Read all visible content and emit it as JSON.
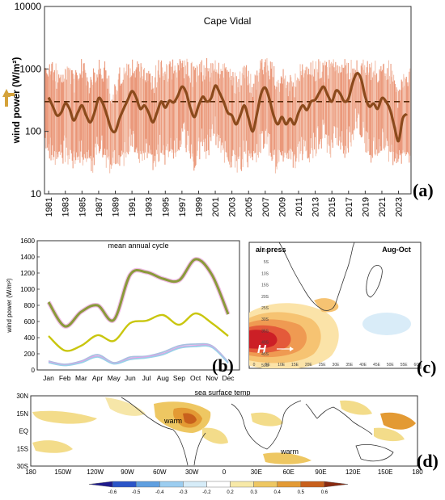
{
  "panel_a": {
    "title": "Cape Vidal",
    "ylabel": "wind power (W/m²)",
    "panel_label": "(a)",
    "chart_data": {
      "type": "line",
      "title": "Cape Vidal",
      "ylabel": "wind power (W/m²)",
      "yscale": "log",
      "ylim": [
        10,
        10000
      ],
      "y_ticks": [
        "10",
        "100",
        "1000",
        "10000"
      ],
      "x_ticks": [
        "1981",
        "1983",
        "1985",
        "1987",
        "1989",
        "1991",
        "1993",
        "1995",
        "1997",
        "1999",
        "2001",
        "2003",
        "2005",
        "2007",
        "2009",
        "2011",
        "2013",
        "2015",
        "2017",
        "2019",
        "2021",
        "2023"
      ],
      "xlim": [
        1980.5,
        2024.5
      ],
      "mean_line": 300,
      "smoothed_series": {
        "x": [
          1981,
          1981.5,
          1982,
          1982.5,
          1983,
          1983.5,
          1984,
          1984.5,
          1985,
          1985.5,
          1986,
          1986.5,
          1987,
          1987.5,
          1988,
          1988.5,
          1989,
          1989.5,
          1990,
          1990.5,
          1991,
          1991.5,
          1992,
          1992.5,
          1993,
          1993.5,
          1994,
          1994.5,
          1995,
          1995.5,
          1996,
          1996.5,
          1997,
          1997.5,
          1998,
          1998.5,
          1999,
          1999.5,
          2000,
          2000.5,
          2001,
          2001.5,
          2002,
          2002.5,
          2003,
          2003.5,
          2004,
          2004.5,
          2005,
          2005.5,
          2006,
          2006.5,
          2007,
          2007.5,
          2008,
          2008.5,
          2009,
          2009.5,
          2010,
          2010.5,
          2011,
          2011.5,
          2012,
          2012.5,
          2013,
          2013.5,
          2014,
          2014.5,
          2015,
          2015.5,
          2016,
          2016.5,
          2017,
          2017.5,
          2018,
          2018.5,
          2019,
          2019.5,
          2020,
          2020.5,
          2021,
          2021.5,
          2022,
          2022.5,
          2023,
          2023.5,
          2024
        ],
        "y": [
          350,
          250,
          180,
          200,
          280,
          230,
          150,
          200,
          260,
          180,
          140,
          200,
          340,
          280,
          180,
          110,
          100,
          160,
          230,
          320,
          440,
          350,
          230,
          260,
          200,
          140,
          200,
          300,
          240,
          310,
          290,
          370,
          520,
          420,
          240,
          170,
          260,
          360,
          300,
          340,
          540,
          420,
          300,
          200,
          180,
          130,
          180,
          260,
          160,
          100,
          190,
          400,
          500,
          330,
          180,
          130,
          170,
          130,
          160,
          130,
          200,
          260,
          220,
          300,
          320,
          420,
          520,
          380,
          300,
          450,
          400,
          300,
          340,
          600,
          850,
          700,
          360,
          250,
          280,
          230,
          340,
          300,
          220,
          120,
          70,
          160,
          190
        ]
      },
      "raw_band": [
        30,
        1000
      ]
    }
  },
  "panel_b": {
    "title": "mean annual cycle",
    "ylabel": "wind power (W/m²)",
    "panel_label": "(b)",
    "chart_data": {
      "type": "line",
      "title": "mean annual cycle",
      "ylabel": "wind power (W/m²)",
      "categories": [
        "Jan",
        "Feb",
        "Mar",
        "Apr",
        "May",
        "Jun",
        "Jul",
        "Aug",
        "Sep",
        "Oct",
        "Nov",
        "Dec"
      ],
      "ylim": [
        0,
        1600
      ],
      "y_ticks": [
        "0",
        "200",
        "400",
        "600",
        "800",
        "1000",
        "1200",
        "1400",
        "1600"
      ],
      "series": [
        {
          "color": "#c9a24a",
          "values": [
            840,
            540,
            720,
            800,
            620,
            1180,
            1210,
            1130,
            1110,
            1370,
            1180,
            690
          ]
        },
        {
          "color": "#c9c60e",
          "values": [
            420,
            240,
            300,
            430,
            360,
            580,
            610,
            680,
            560,
            700,
            580,
            420
          ]
        },
        {
          "color": "#a8c0e0",
          "values": [
            110,
            70,
            110,
            190,
            90,
            160,
            170,
            220,
            300,
            320,
            300,
            100
          ]
        },
        {
          "color": "#e6a0e6",
          "values": [
            100,
            60,
            100,
            170,
            80,
            140,
            160,
            200,
            280,
            300,
            290,
            90
          ]
        },
        {
          "color": "#9ad0e8",
          "values": [
            90,
            55,
            90,
            160,
            75,
            130,
            150,
            190,
            270,
            290,
            280,
            85
          ]
        }
      ]
    }
  },
  "panel_c": {
    "left_title": "air press",
    "right_title": "Aug-Oct",
    "h_marker": "H",
    "panel_label": "(c)",
    "y_ticks": [
      "0S",
      "5S",
      "10S",
      "15S",
      "20S",
      "25S",
      "30S",
      "35S",
      "40S",
      "45S",
      "50S"
    ],
    "x_ticks": [
      "0",
      "5E",
      "10E",
      "15E",
      "20E",
      "25E",
      "30E",
      "35E",
      "40E",
      "45E",
      "50E",
      "55E",
      "60E"
    ]
  },
  "panel_d": {
    "title": "sea surface temp",
    "panel_label": "(d)",
    "warm_labels": [
      "warm",
      "warm"
    ],
    "y_ticks": [
      "30N",
      "15N",
      "EQ",
      "15S",
      "30S"
    ],
    "x_ticks": [
      "180",
      "150W",
      "120W",
      "90W",
      "60W",
      "30W",
      "0",
      "30E",
      "60E",
      "90E",
      "120E",
      "150E",
      "180"
    ],
    "colorbar_ticks": [
      "-0.6",
      "-0.5",
      "-0.4",
      "-0.3",
      "-0.2",
      "0.2",
      "0.3",
      "0.4",
      "0.5",
      "0.6"
    ],
    "colorbar_colors": [
      "#1e1a8c",
      "#2b55c8",
      "#5f9fe0",
      "#9ccdf0",
      "#d6ecf8",
      "#ffffff",
      "#f7e9a8",
      "#eec762",
      "#e39a34",
      "#c8601c",
      "#8a2a10"
    ]
  }
}
